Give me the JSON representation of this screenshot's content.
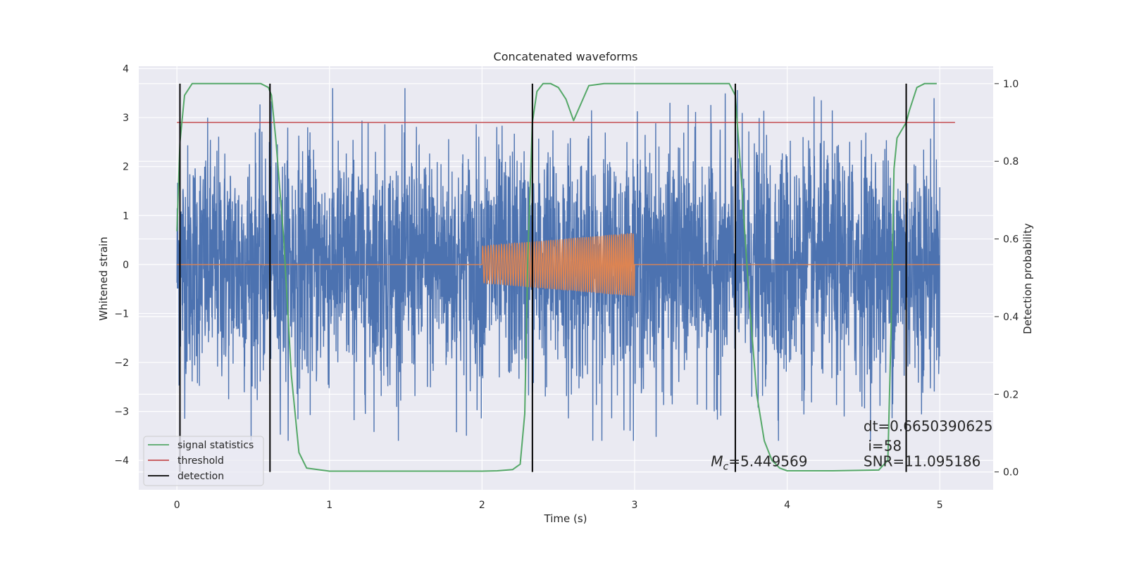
{
  "chart_data": {
    "type": "line",
    "title": "Concatenated waveforms",
    "xlabel": "Time (s)",
    "ylabel_left": "Whitened strain",
    "ylabel_right": "Detection probability",
    "xlim": [
      -0.25,
      5.35
    ],
    "ylim_left": [
      -4.6,
      4.05
    ],
    "ylim_right": [
      -0.046,
      1.045
    ],
    "xticks": [
      0,
      1,
      2,
      3,
      4,
      5
    ],
    "yticks_left": [
      -4,
      -3,
      -2,
      -1,
      0,
      1,
      2,
      3,
      4
    ],
    "yticks_right": [
      0.0,
      0.2,
      0.4,
      0.6,
      0.8,
      1.0
    ],
    "grid": true,
    "legend_position": "bottom-left",
    "series": [
      {
        "name": "signal statistics",
        "axis": "right",
        "color": "#55a868",
        "x": [
          0.0,
          0.02,
          0.05,
          0.1,
          0.2,
          0.4,
          0.55,
          0.6,
          0.62,
          0.65,
          0.7,
          0.75,
          0.8,
          0.85,
          1.0,
          1.5,
          2.0,
          2.1,
          2.2,
          2.25,
          2.28,
          2.3,
          2.33,
          2.36,
          2.4,
          2.45,
          2.5,
          2.55,
          2.6,
          2.65,
          2.7,
          2.8,
          3.0,
          3.5,
          3.62,
          3.66,
          3.7,
          3.75,
          3.8,
          3.85,
          3.9,
          3.95,
          4.0,
          4.3,
          4.6,
          4.66,
          4.68,
          4.7,
          4.72,
          4.75,
          4.78,
          4.8,
          4.85,
          4.9,
          4.98
        ],
        "y": [
          0.62,
          0.85,
          0.97,
          1.0,
          1.0,
          1.0,
          1.0,
          0.99,
          0.97,
          0.85,
          0.6,
          0.25,
          0.05,
          0.01,
          0.002,
          0.002,
          0.002,
          0.003,
          0.006,
          0.02,
          0.15,
          0.55,
          0.9,
          0.98,
          1.0,
          1.0,
          0.99,
          0.96,
          0.905,
          0.95,
          0.995,
          1.0,
          1.0,
          1.0,
          1.0,
          0.97,
          0.75,
          0.45,
          0.2,
          0.08,
          0.03,
          0.01,
          0.003,
          0.003,
          0.005,
          0.03,
          0.35,
          0.78,
          0.86,
          0.88,
          0.9,
          0.93,
          0.99,
          1.0,
          1.0
        ]
      },
      {
        "name": "threshold",
        "axis": "right",
        "color": "#c44e52",
        "x": [
          0.0,
          5.1
        ],
        "y": [
          0.9,
          0.9
        ]
      },
      {
        "name": "detection",
        "axis": "right",
        "color": "#000000",
        "x_lines": [
          0.02,
          0.61,
          2.33,
          3.66,
          4.78
        ],
        "y_range": [
          0.0,
          1.0
        ]
      },
      {
        "name": "",
        "axis": "left",
        "color": "#4c72b0",
        "x_range": [
          0.0,
          5.0
        ],
        "envelope": 3.6,
        "typical_amplitude": 1.2
      },
      {
        "name": "",
        "axis": "left",
        "color": "#dd8452",
        "x_range": [
          0.0,
          5.0
        ],
        "chirp_start": 2.0,
        "chirp_end": 3.0,
        "amplitude_start": 0.38,
        "amplitude_end": 0.65
      }
    ],
    "annotations": [
      {
        "text": "dt=0.6650390625",
        "x": 4.5,
        "y_prob": 0.105
      },
      {
        "text": "i=58",
        "x": 4.53,
        "y_prob": 0.055
      },
      {
        "text": "SNR=11.095186",
        "x": 4.5,
        "y_prob": 0.015
      },
      {
        "text": "=5.449569",
        "prefix": "M",
        "subscript": "c",
        "x": 3.5,
        "y_prob": 0.015
      }
    ]
  },
  "colors": {
    "plot_background": "#eaeaf2",
    "grid": "#ffffff",
    "text": "#262626"
  }
}
